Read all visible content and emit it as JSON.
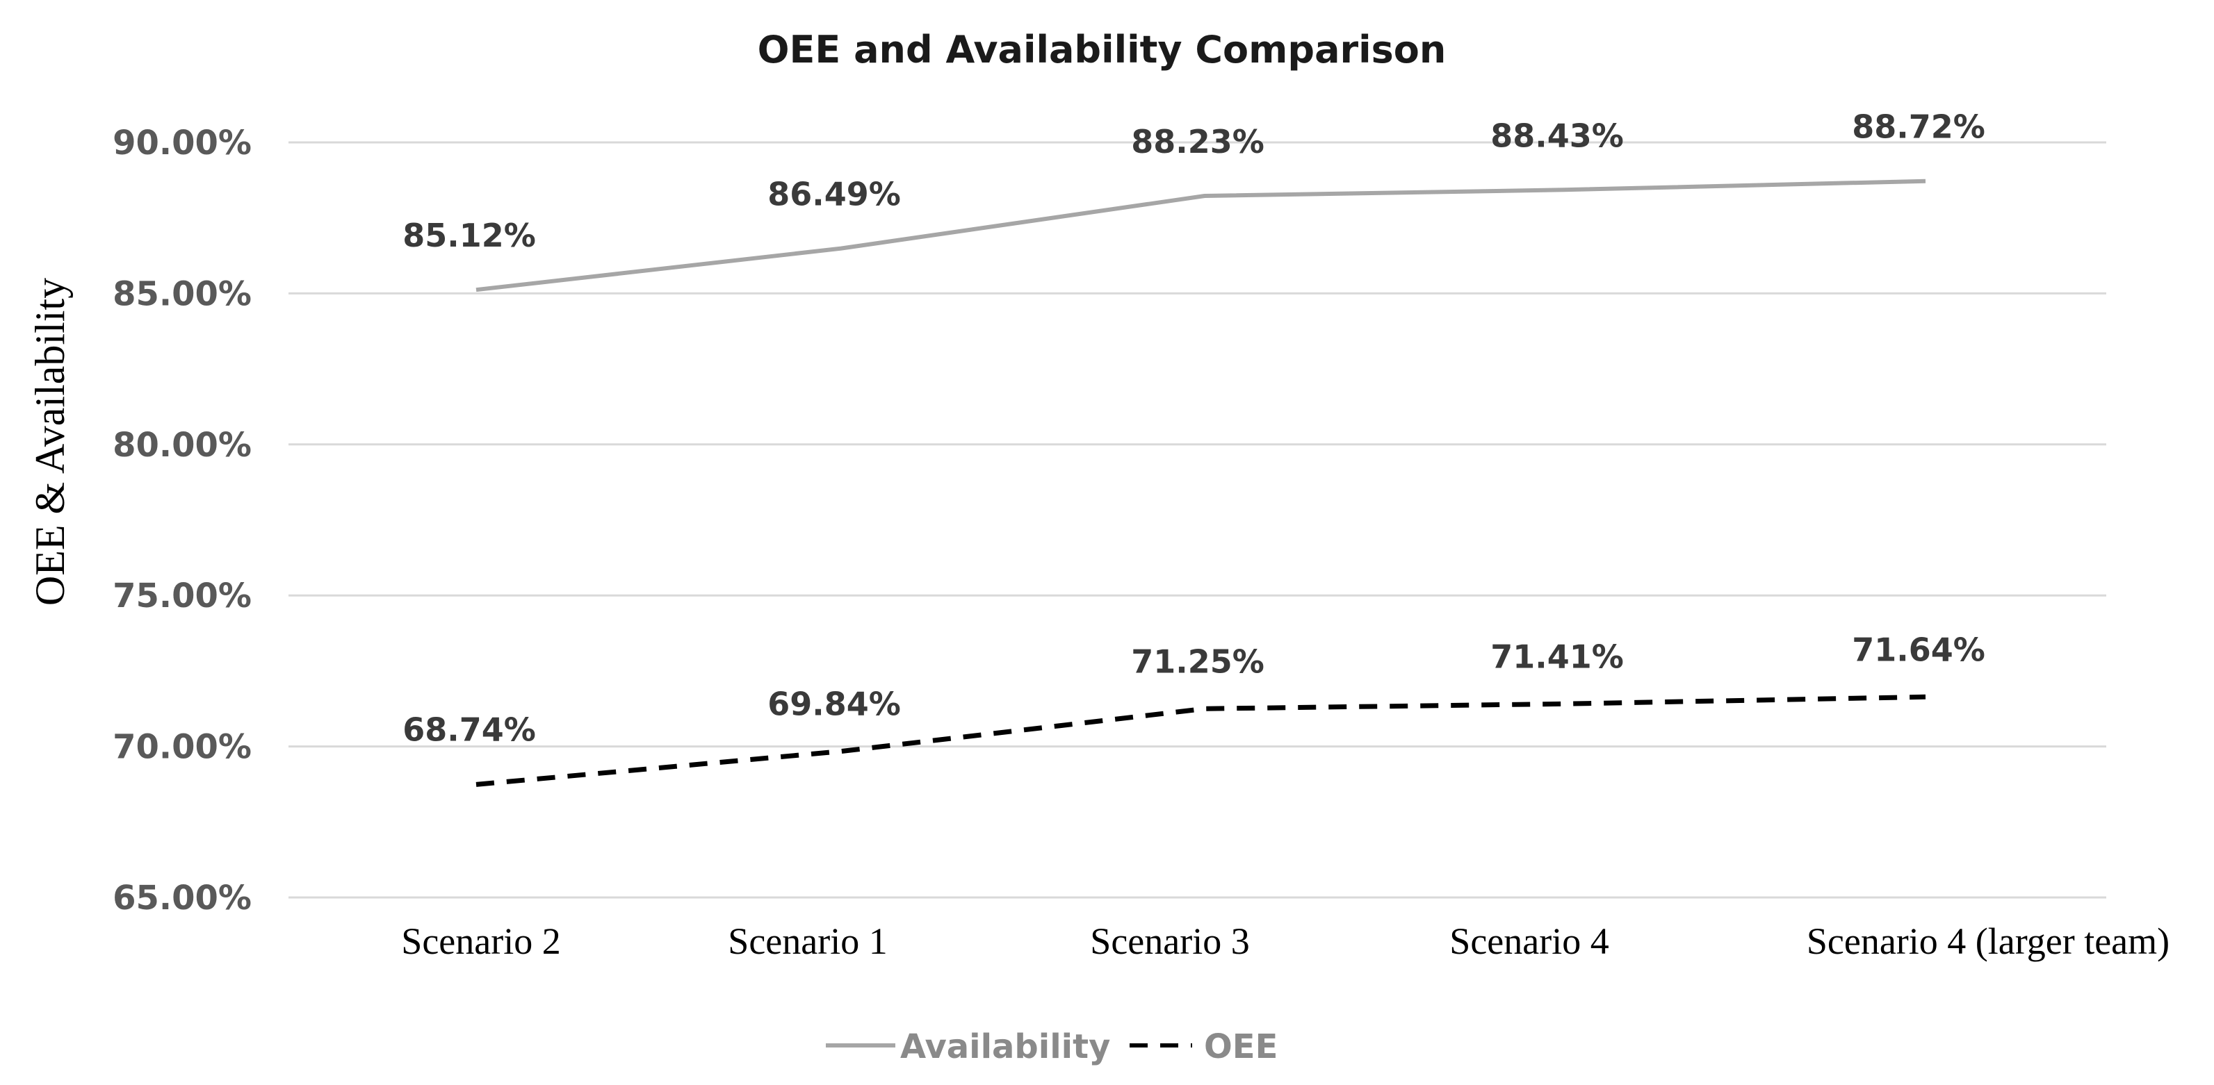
{
  "chart_data": {
    "type": "line",
    "title": "OEE and Availability Comparison",
    "xlabel": "",
    "ylabel": "OEE & Availability",
    "categories": [
      "Scenario  2",
      "Scenario 1",
      "Scenario  3",
      "Scenario  4",
      "Scenario  4 (larger team)"
    ],
    "ylim": [
      65,
      90
    ],
    "yticks": [
      90,
      85,
      80,
      75,
      70,
      65
    ],
    "ytick_labels": [
      "90.00%",
      "85.00%",
      "80.00%",
      "75.00%",
      "70.00%",
      "65.00%"
    ],
    "grid": true,
    "legend_position": "bottom",
    "series": [
      {
        "name": "Availability",
        "values": [
          85.12,
          86.49,
          88.23,
          88.43,
          88.72
        ],
        "labels": [
          "85.12%",
          "86.49%",
          "88.23%",
          "88.43%",
          "88.72%"
        ],
        "color": "#a6a6a6",
        "dash": "solid"
      },
      {
        "name": "OEE",
        "values": [
          68.74,
          69.84,
          71.25,
          71.41,
          71.64
        ],
        "labels": [
          "68.74%",
          "69.84%",
          "71.25%",
          "71.41%",
          "71.64%"
        ],
        "color": "#000000",
        "dash": "dashed"
      }
    ]
  }
}
